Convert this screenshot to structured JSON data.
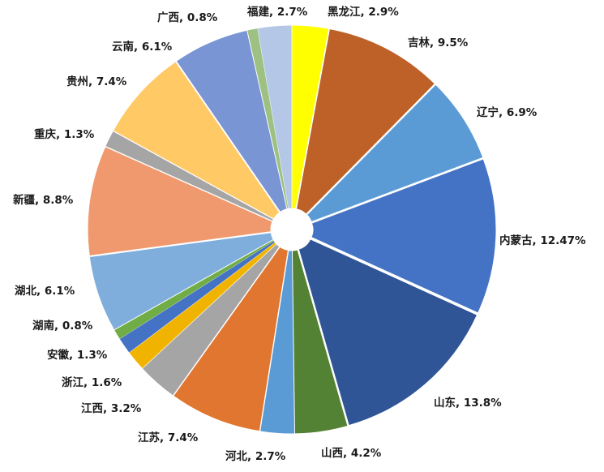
{
  "chart_data": {
    "type": "pie",
    "title": "",
    "slices": [
      {
        "name": "黑龙江",
        "value": 2.9,
        "label": "黑龙江, 2.9%",
        "color": "#FFFF00"
      },
      {
        "name": "吉林",
        "value": 9.5,
        "label": "吉林, 9.5%",
        "color": "#BE6128"
      },
      {
        "name": "辽宁",
        "value": 6.9,
        "label": "辽宁, 6.9%",
        "color": "#5B9BD5"
      },
      {
        "name": "内蒙古",
        "value": 12.47,
        "label": "内蒙古, 12.47%",
        "color": "#4472C4"
      },
      {
        "name": "山东",
        "value": 13.8,
        "label": "山东, 13.8%",
        "color": "#2F5597"
      },
      {
        "name": "山西",
        "value": 4.2,
        "label": "山西, 4.2%",
        "color": "#548235"
      },
      {
        "name": "河北",
        "value": 2.7,
        "label": "河北, 2.7%",
        "color": "#5B9BD5"
      },
      {
        "name": "江苏",
        "value": 7.4,
        "label": "江苏, 7.4%",
        "color": "#E07630"
      },
      {
        "name": "江西",
        "value": 3.2,
        "label": "江西, 3.2%",
        "color": "#A5A5A5"
      },
      {
        "name": "浙江",
        "value": 1.6,
        "label": "浙江, 1.6%",
        "color": "#F0B400"
      },
      {
        "name": "安徽",
        "value": 1.3,
        "label": "安徽, 1.3%",
        "color": "#4472C4"
      },
      {
        "name": "湖南",
        "value": 0.8,
        "label": "湖南, 0.8%",
        "color": "#70AD47"
      },
      {
        "name": "湖北",
        "value": 6.1,
        "label": "湖北, 6.1%",
        "color": "#80AEDC"
      },
      {
        "name": "新疆",
        "value": 8.8,
        "label": "新疆, 8.8%",
        "color": "#F0996E"
      },
      {
        "name": "重庆",
        "value": 1.3,
        "label": "重庆, 1.3%",
        "color": "#A5A5A5"
      },
      {
        "name": "贵州",
        "value": 7.4,
        "label": "贵州, 7.4%",
        "color": "#FFC966"
      },
      {
        "name": "云南",
        "value": 6.1,
        "label": "云南, 6.1%",
        "color": "#7A95D4"
      },
      {
        "name": "广西",
        "value": 0.8,
        "label": "广西, 0.8%",
        "color": "#9DC183"
      },
      {
        "name": "福建",
        "value": 2.7,
        "label": "福建, 2.7%",
        "color": "#B4C7E7"
      }
    ],
    "legend": "none",
    "data_labels": "outside"
  }
}
